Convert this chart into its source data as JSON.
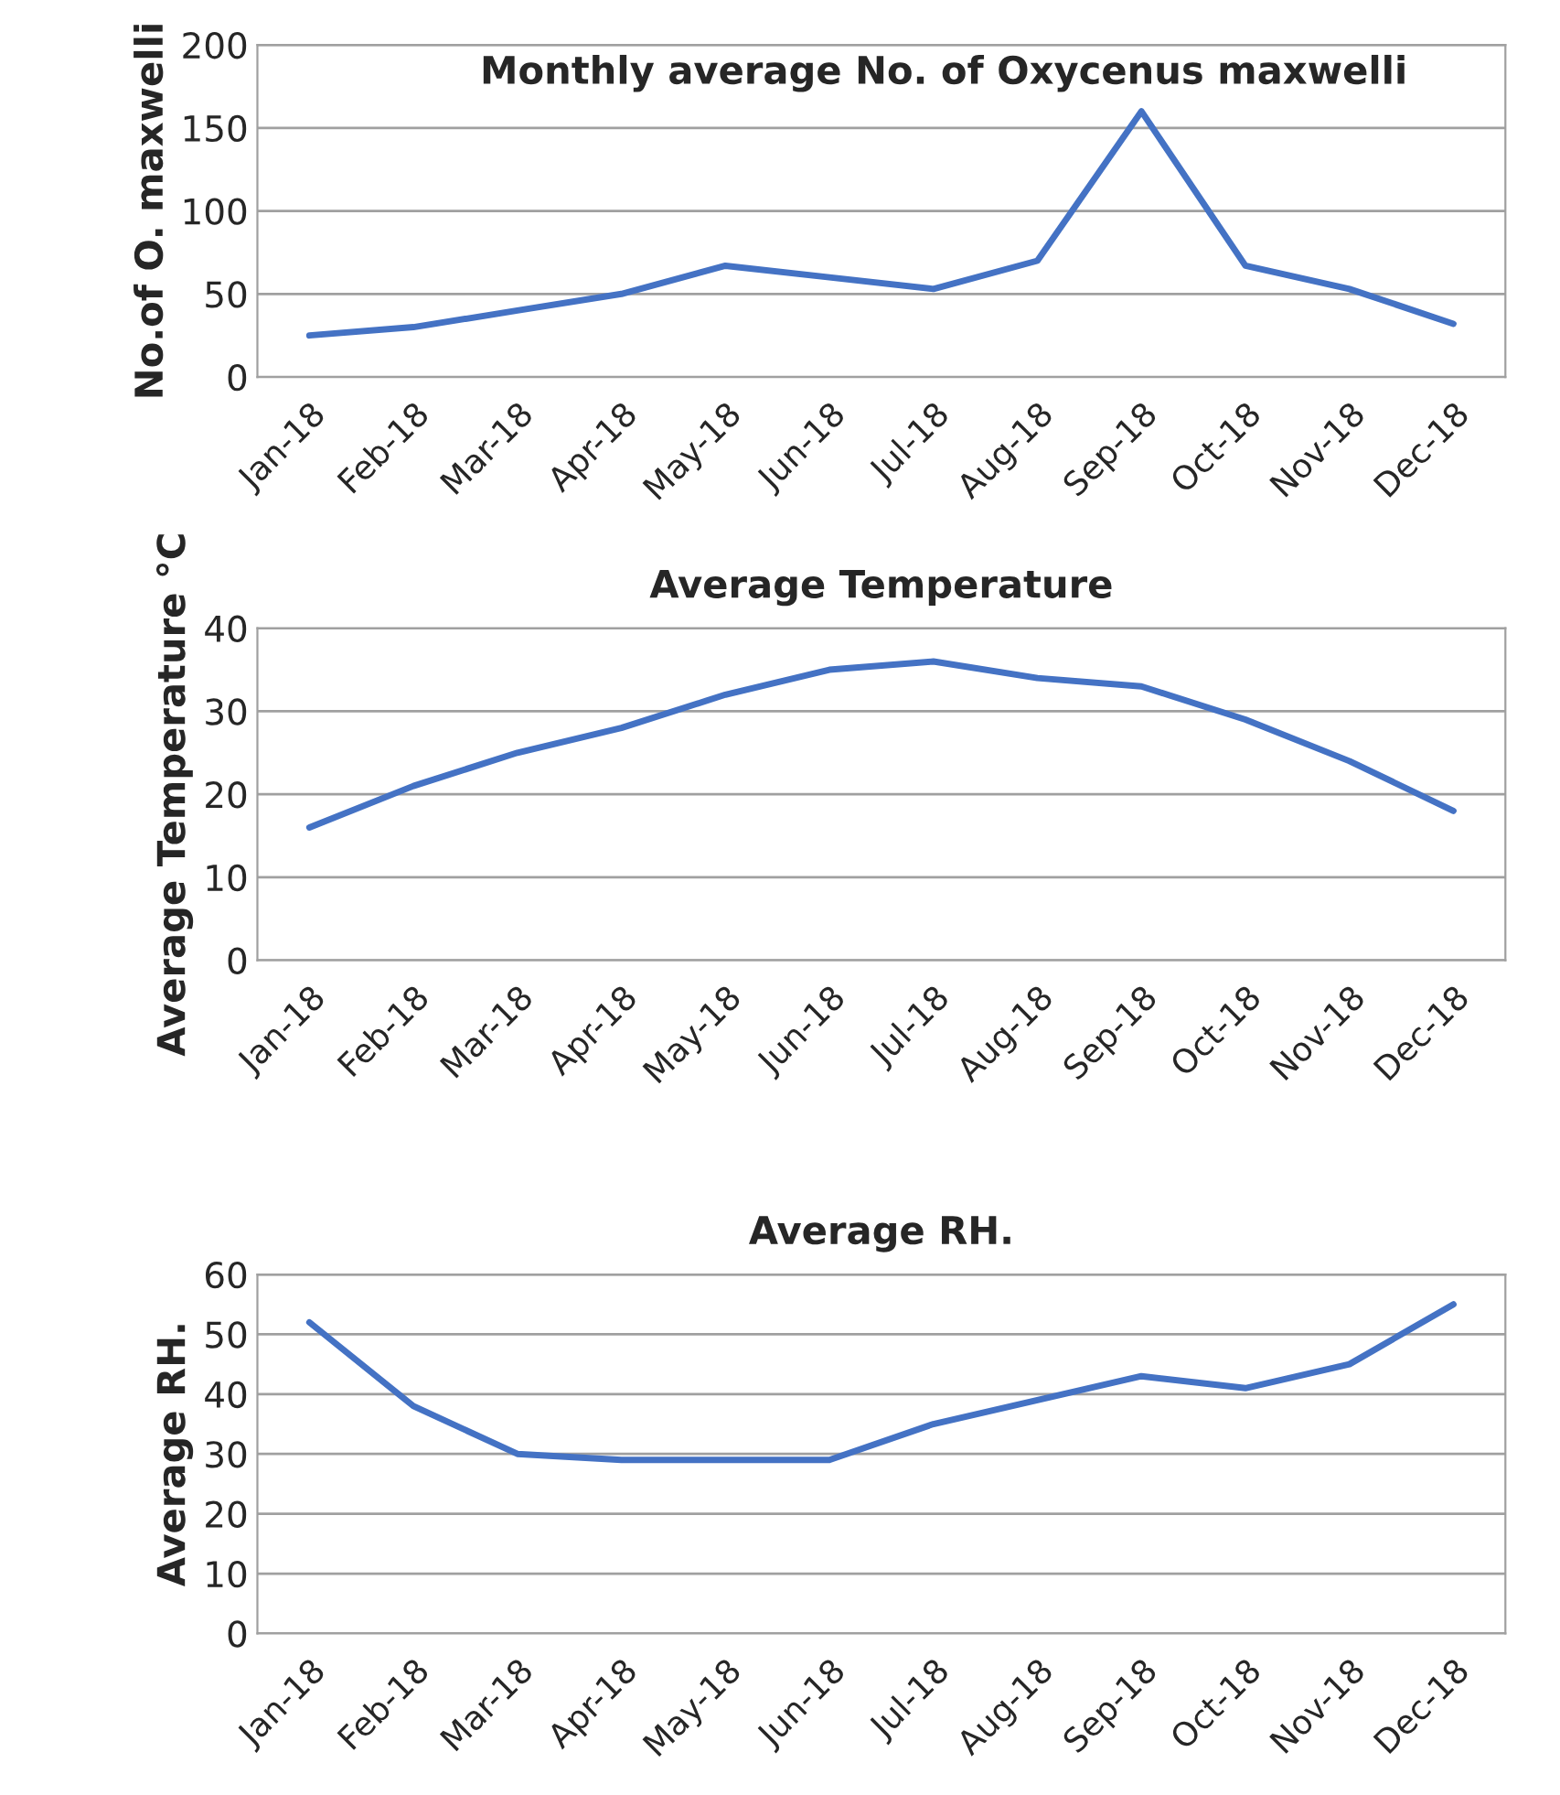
{
  "chart_data": [
    {
      "type": "line",
      "title": "Monthly average No. of Oxycenus maxwelli",
      "ylabel": "No.of O. maxwelli",
      "categories": [
        "Jan-18",
        "Feb-18",
        "Mar-18",
        "Apr-18",
        "May-18",
        "Jun-18",
        "Jul-18",
        "Aug-18",
        "Sep-18",
        "Oct-18",
        "Nov-18",
        "Dec-18"
      ],
      "series": [
        {
          "color": "#4472c4",
          "values": [
            25,
            30,
            40,
            50,
            67,
            60,
            53,
            70,
            160,
            67,
            53,
            32
          ]
        }
      ],
      "ylim": [
        0,
        200
      ],
      "yticks": [
        0,
        50,
        100,
        150,
        200
      ],
      "grid": "y"
    },
    {
      "type": "line",
      "title": "Average Temperature",
      "ylabel": "Average Temperature °C",
      "categories": [
        "Jan-18",
        "Feb-18",
        "Mar-18",
        "Apr-18",
        "May-18",
        "Jun-18",
        "Jul-18",
        "Aug-18",
        "Sep-18",
        "Oct-18",
        "Nov-18",
        "Dec-18"
      ],
      "series": [
        {
          "color": "#4472c4",
          "values": [
            16,
            21,
            25,
            28,
            32,
            35,
            36,
            34,
            33,
            29,
            24,
            18
          ]
        }
      ],
      "ylim": [
        0,
        40
      ],
      "yticks": [
        0,
        10,
        20,
        30,
        40
      ],
      "grid": "y"
    },
    {
      "type": "line",
      "title": "Average RH.",
      "ylabel": "Average RH.",
      "categories": [
        "Jan-18",
        "Feb-18",
        "Mar-18",
        "Apr-18",
        "May-18",
        "Jun-18",
        "Jul-18",
        "Aug-18",
        "Sep-18",
        "Oct-18",
        "Nov-18",
        "Dec-18"
      ],
      "series": [
        {
          "color": "#4472c4",
          "values": [
            52,
            38,
            30,
            29,
            29,
            29,
            35,
            39,
            43,
            41,
            45,
            55
          ]
        }
      ],
      "ylim": [
        0,
        60
      ],
      "yticks": [
        0,
        10,
        20,
        30,
        40,
        50,
        60
      ],
      "grid": "y"
    }
  ]
}
